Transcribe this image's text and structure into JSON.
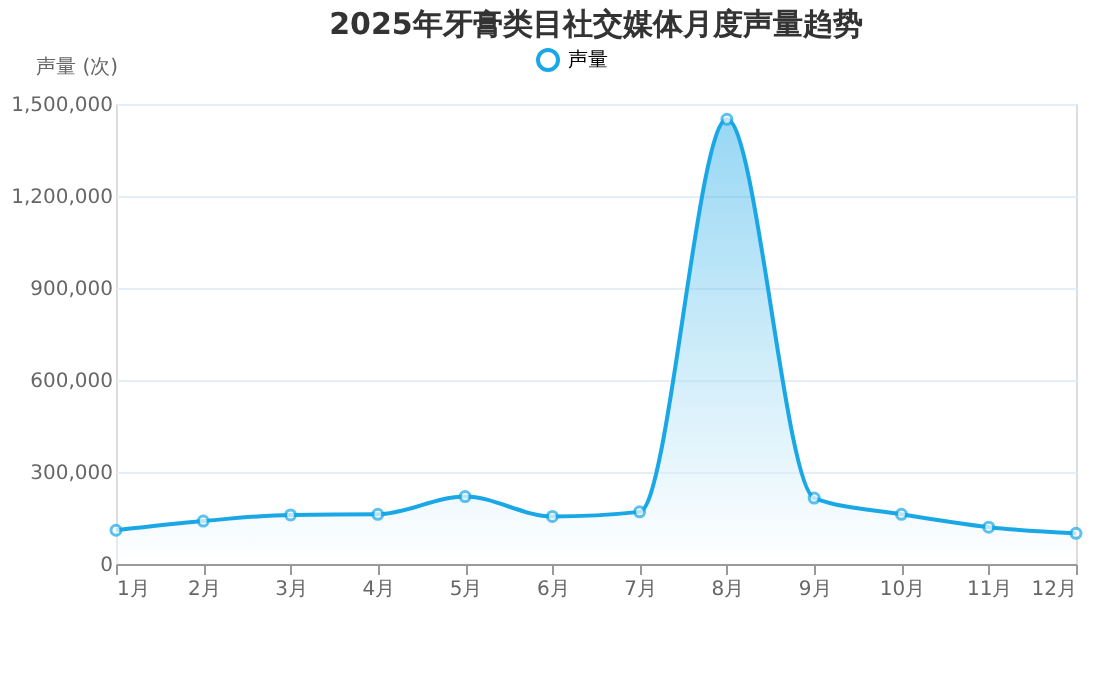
{
  "chart_data": {
    "type": "area",
    "title": "2025年牙膏类目社交媒体月度声量趋势",
    "ylabel": "声量 (次)",
    "categories": [
      "1月",
      "2月",
      "3月",
      "4月",
      "5月",
      "6月",
      "7月",
      "8月",
      "9月",
      "10月",
      "11月",
      "12月"
    ],
    "series": [
      {
        "name": "声量",
        "color": "#1aa7e6",
        "values": [
          110000,
          140000,
          160000,
          162000,
          220000,
          155000,
          170000,
          1450000,
          215000,
          162000,
          120000,
          100000
        ]
      }
    ],
    "ylim": [
      0,
      1500000
    ],
    "yticks": [
      0,
      {
        "value": 300000,
        "label": "300,000"
      },
      {
        "value": 600000,
        "label": "600,000"
      },
      {
        "value": 900000,
        "label": "900,000"
      },
      {
        "value": 1200000,
        "label": "1,200,000"
      },
      {
        "value": 1500000,
        "label": "1,500,000"
      }
    ],
    "grid": "y",
    "legend": "top",
    "marker": "circle",
    "line_style": "solid"
  }
}
